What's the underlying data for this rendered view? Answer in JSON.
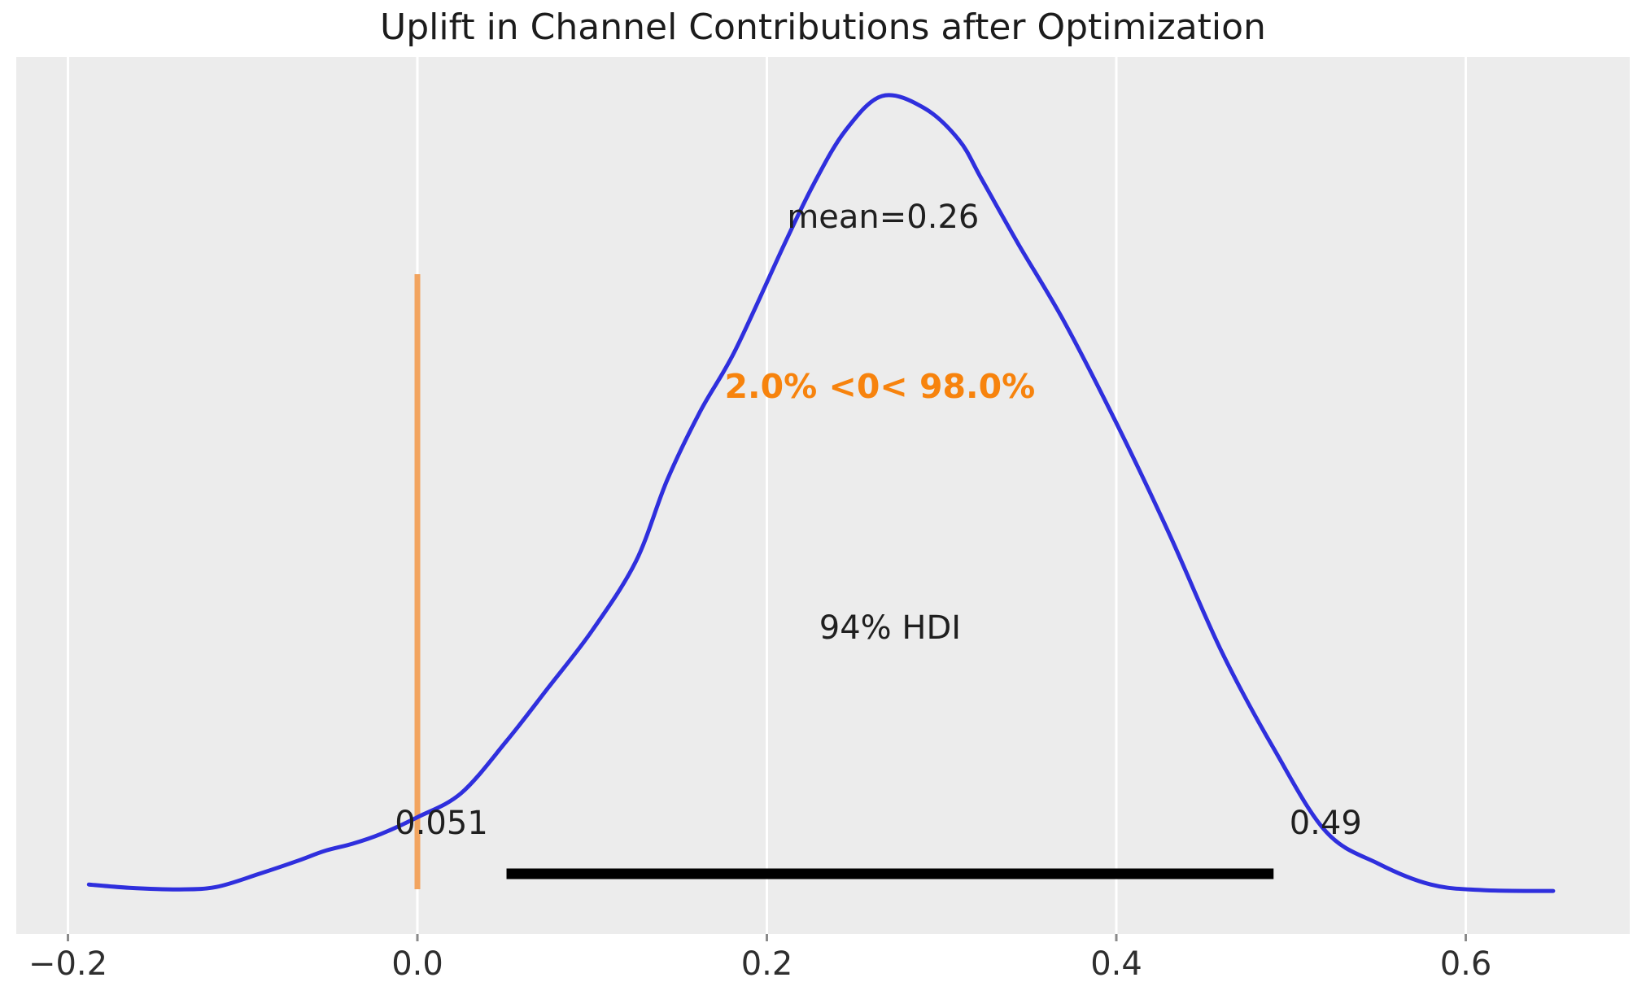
{
  "title": "Uplift in Channel Contributions after Optimization",
  "chart_data": {
    "type": "line",
    "subtype": "kde_posterior_density",
    "title": "Uplift in Channel Contributions after Optimization",
    "xlabel": "",
    "ylabel": "",
    "xlim": [
      -0.23,
      0.694
    ],
    "grid": "vertical-white-gridlines-on-gray-panel",
    "legend_position": "none",
    "xticks": [
      -0.2,
      0.0,
      0.2,
      0.4,
      0.6
    ],
    "xtick_labels": [
      "−0.2",
      "0.0",
      "0.2",
      "0.4",
      "0.6"
    ],
    "stats": {
      "mean": 0.26,
      "mean_label": "mean=0.26",
      "hdi_prob": 0.94,
      "hdi_label": "94% HDI",
      "hdi_low": 0.051,
      "hdi_low_label": "0.051",
      "hdi_high": 0.49,
      "hdi_high_label": "0.49",
      "ref_value": 0,
      "pct_below": "2.0%",
      "pct_above": "98.0%",
      "ref_text": "2.0% <0< 98.0%"
    },
    "kde": {
      "x": [
        -0.188,
        -0.165,
        -0.136,
        -0.115,
        -0.091,
        -0.068,
        -0.053,
        -0.037,
        -0.021,
        0.0,
        0.025,
        0.051,
        0.075,
        0.1,
        0.125,
        0.143,
        0.162,
        0.182,
        0.21,
        0.227,
        0.245,
        0.266,
        0.29,
        0.31,
        0.323,
        0.344,
        0.37,
        0.4,
        0.43,
        0.46,
        0.49,
        0.52,
        0.55,
        0.58,
        0.61,
        0.65
      ],
      "density_normalized": [
        0.016,
        0.012,
        0.01,
        0.013,
        0.029,
        0.046,
        0.058,
        0.067,
        0.079,
        0.1,
        0.13,
        0.195,
        0.262,
        0.333,
        0.419,
        0.521,
        0.607,
        0.683,
        0.815,
        0.891,
        0.957,
        1.0,
        0.985,
        0.945,
        0.896,
        0.815,
        0.719,
        0.592,
        0.455,
        0.308,
        0.186,
        0.082,
        0.042,
        0.016,
        0.009,
        0.008
      ]
    },
    "colors": {
      "curve": "#2f2fdd",
      "ref_line": "#f2a45f",
      "ref_text": "#f7830d",
      "hdi_bar": "#000000",
      "panel_background": "#ececec",
      "gridline": "#ffffff",
      "tick_mark": "#8a8a8a",
      "text": "#1f1f1f"
    }
  }
}
